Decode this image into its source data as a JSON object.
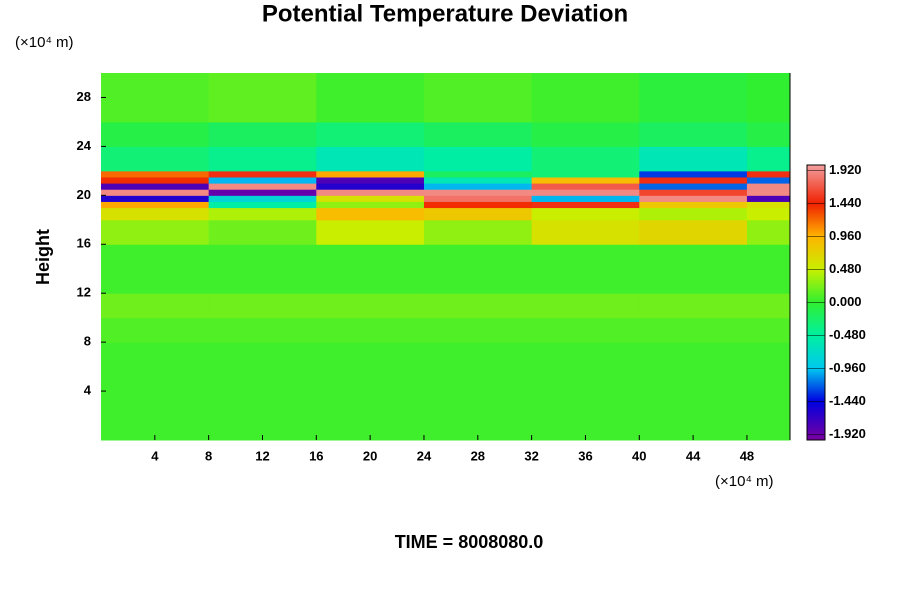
{
  "chart_data": {
    "type": "heatmap",
    "title": "Potential Temperature Deviation",
    "ylabel": "Height",
    "y_unit": "(×10⁴ m)",
    "x_unit": "(×10⁴ m)",
    "footer": "TIME = 8008080.0",
    "xlim": [
      0,
      51.2
    ],
    "ylim": [
      0,
      30
    ],
    "xticks": [
      4,
      8,
      12,
      16,
      20,
      24,
      28,
      32,
      36,
      40,
      44,
      48
    ],
    "yticks": [
      4,
      8,
      12,
      16,
      20,
      24,
      28
    ],
    "x_bins": [
      0,
      8,
      16,
      24,
      32,
      40,
      48,
      51.2
    ],
    "y_bins": [
      0,
      4,
      8,
      10,
      12,
      16,
      18,
      19,
      19.5,
      20,
      20.5,
      21,
      21.5,
      22,
      24,
      26,
      30
    ],
    "z": [
      [
        0.05,
        0.05,
        0.05,
        0.05,
        0.05,
        0.05,
        0.05
      ],
      [
        0.05,
        0.05,
        0.05,
        0.05,
        0.05,
        0.05,
        0.05
      ],
      [
        0.1,
        0.1,
        0.1,
        0.1,
        0.1,
        0.1,
        0.1
      ],
      [
        0.2,
        0.2,
        0.2,
        0.2,
        0.2,
        0.2,
        0.2
      ],
      [
        0.05,
        0.05,
        0.05,
        0.05,
        0.05,
        0.05,
        0.05
      ],
      [
        0.3,
        0.2,
        0.5,
        0.3,
        0.6,
        0.7,
        0.3
      ],
      [
        0.6,
        0.4,
        0.9,
        0.8,
        0.5,
        0.4,
        0.5
      ],
      [
        1.0,
        -0.5,
        0.3,
        1.4,
        1.5,
        0.8,
        0.6
      ],
      [
        -1.6,
        -0.8,
        0.6,
        1.8,
        -1.0,
        1.9,
        -1.8
      ],
      [
        1.9,
        -1.9,
        1.9,
        1.9,
        1.9,
        1.6,
        1.9
      ],
      [
        -1.8,
        1.9,
        -1.6,
        -1.0,
        1.7,
        -1.2,
        1.9
      ],
      [
        1.4,
        -1.0,
        -1.8,
        -0.6,
        0.9,
        1.5,
        -1.2
      ],
      [
        1.2,
        1.5,
        1.0,
        -0.2,
        -0.3,
        -1.3,
        1.5
      ],
      [
        -0.3,
        -0.4,
        -0.6,
        -0.5,
        -0.3,
        -0.6,
        -0.4
      ],
      [
        -0.1,
        -0.2,
        -0.3,
        -0.2,
        -0.1,
        -0.2,
        -0.1
      ],
      [
        0.1,
        0.15,
        0.05,
        0.1,
        0.05,
        -0.05,
        0
      ]
    ],
    "colorscale": [
      [
        -2,
        "#7a00a0"
      ],
      [
        -1.44,
        "#0000e0"
      ],
      [
        -0.96,
        "#00c8f0"
      ],
      [
        -0.48,
        "#00f0a0"
      ],
      [
        0,
        "#30ef30"
      ],
      [
        0.48,
        "#c8f000"
      ],
      [
        0.96,
        "#ffb400"
      ],
      [
        1.44,
        "#f02000"
      ],
      [
        2,
        "#f4a0a0"
      ]
    ],
    "cblim": [
      -2,
      2
    ],
    "cbticks": [
      {
        "value": -1.92,
        "label": "-1.920"
      },
      {
        "value": -1.44,
        "label": "-1.440"
      },
      {
        "value": -0.96,
        "label": "-0.960"
      },
      {
        "value": -0.48,
        "label": "-0.480"
      },
      {
        "value": 0,
        "label": "0.000"
      },
      {
        "value": 0.48,
        "label": "0.480"
      },
      {
        "value": 0.96,
        "label": "0.960"
      },
      {
        "value": 1.44,
        "label": "1.440"
      },
      {
        "value": 1.92,
        "label": "1.920"
      }
    ]
  }
}
